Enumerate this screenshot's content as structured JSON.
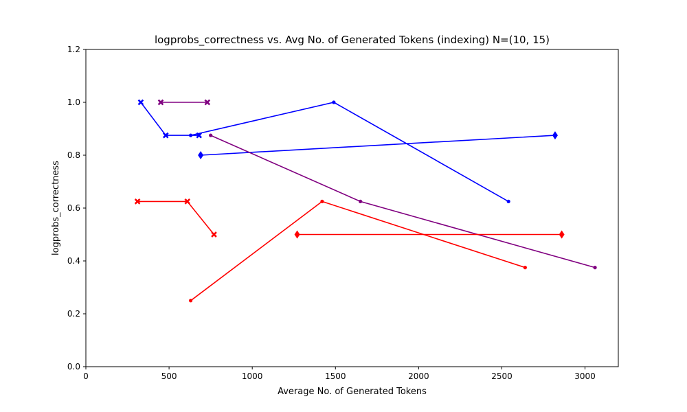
{
  "chart_data": {
    "type": "line",
    "title": "logprobs_correctness vs. Avg No. of Generated Tokens (indexing) N=(10, 15)",
    "xlabel": "Average No. of Generated Tokens",
    "ylabel": "logprobs_correctness",
    "xlim": [
      0,
      3200
    ],
    "ylim": [
      0,
      1.2
    ],
    "xticks": [
      0,
      500,
      1000,
      1500,
      2000,
      2500,
      3000
    ],
    "yticks": [
      0.0,
      0.2,
      0.4,
      0.6,
      0.8,
      1.0,
      1.2
    ],
    "grid": false,
    "series": [
      {
        "color": "#0000ff",
        "marker": "x",
        "x": [
          330,
          480,
          680
        ],
        "y": [
          1.0,
          0.875,
          0.875
        ]
      },
      {
        "color": "#0000ff",
        "marker": "dot",
        "x": [
          630,
          1490,
          2540
        ],
        "y": [
          0.875,
          1.0,
          0.625
        ]
      },
      {
        "color": "#0000ff",
        "marker": "diamond",
        "x": [
          690,
          2820
        ],
        "y": [
          0.8,
          0.875
        ]
      },
      {
        "color": "#800080",
        "marker": "x",
        "x": [
          450,
          730
        ],
        "y": [
          1.0,
          1.0
        ]
      },
      {
        "color": "#800080",
        "marker": "dot",
        "x": [
          750,
          1650,
          3060
        ],
        "y": [
          0.875,
          0.625,
          0.375
        ]
      },
      {
        "color": "#ff0000",
        "marker": "x",
        "x": [
          310,
          610,
          770
        ],
        "y": [
          0.625,
          0.625,
          0.5
        ]
      },
      {
        "color": "#ff0000",
        "marker": "dot",
        "x": [
          630,
          1420,
          2640
        ],
        "y": [
          0.25,
          0.625,
          0.375
        ]
      },
      {
        "color": "#ff0000",
        "marker": "diamond",
        "x": [
          1270,
          2860
        ],
        "y": [
          0.5,
          0.5
        ]
      }
    ]
  }
}
